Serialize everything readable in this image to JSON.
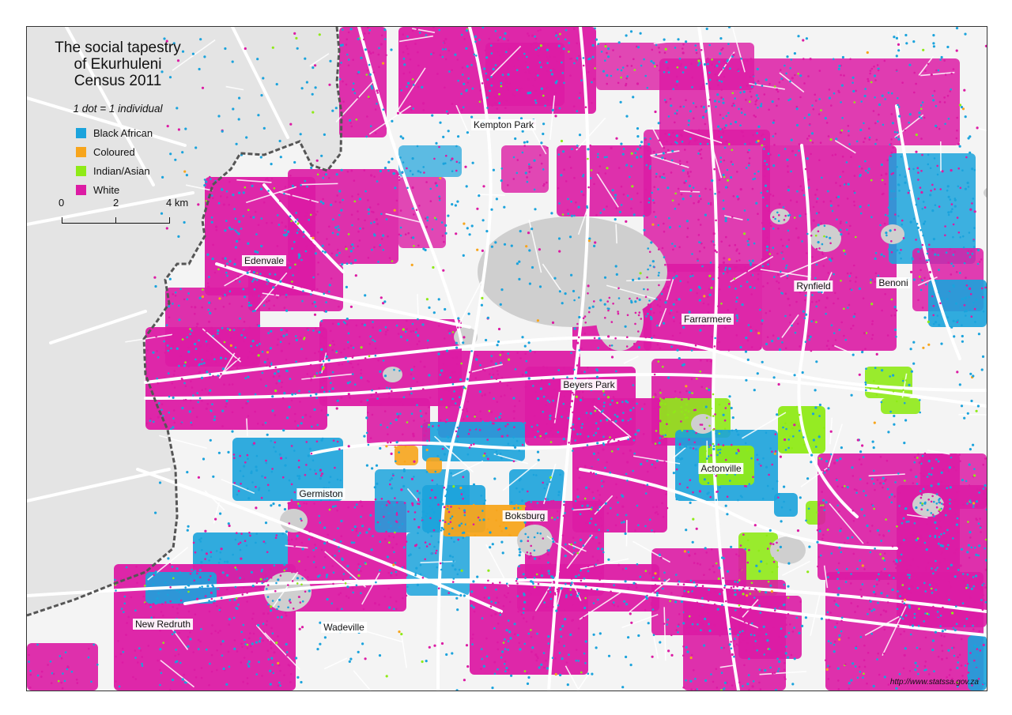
{
  "map": {
    "title_lines": [
      "The social tapestry",
      "of Ekurhuleni",
      "Census 2011"
    ],
    "dot_note": "1 dot = 1 individual",
    "legend": [
      {
        "label": "Black African",
        "color": "#1ba3dc"
      },
      {
        "label": "Coloured",
        "color": "#f7a51c"
      },
      {
        "label": "Indian/Asian",
        "color": "#8fea17"
      },
      {
        "label": "White",
        "color": "#dc1ba4"
      }
    ],
    "scale": {
      "ticks": [
        "0",
        "2",
        "4"
      ],
      "unit": "km",
      "end_label": "4 km"
    },
    "places": [
      {
        "name": "Kempton Park"
      },
      {
        "name": "Edenvale"
      },
      {
        "name": "Rynfield"
      },
      {
        "name": "Benoni"
      },
      {
        "name": "Farrarmere"
      },
      {
        "name": "Beyers Park"
      },
      {
        "name": "Actonville"
      },
      {
        "name": "Germiston"
      },
      {
        "name": "Boksburg"
      },
      {
        "name": "New Redruth"
      },
      {
        "name": "Wadeville"
      }
    ],
    "source": "http://www.statssa.gov.za",
    "colors": {
      "background": "#e4e4e4",
      "land": "#f4f4f4",
      "roads": "#ffffff",
      "water": "#cfcfcf",
      "border": "#555555"
    }
  }
}
